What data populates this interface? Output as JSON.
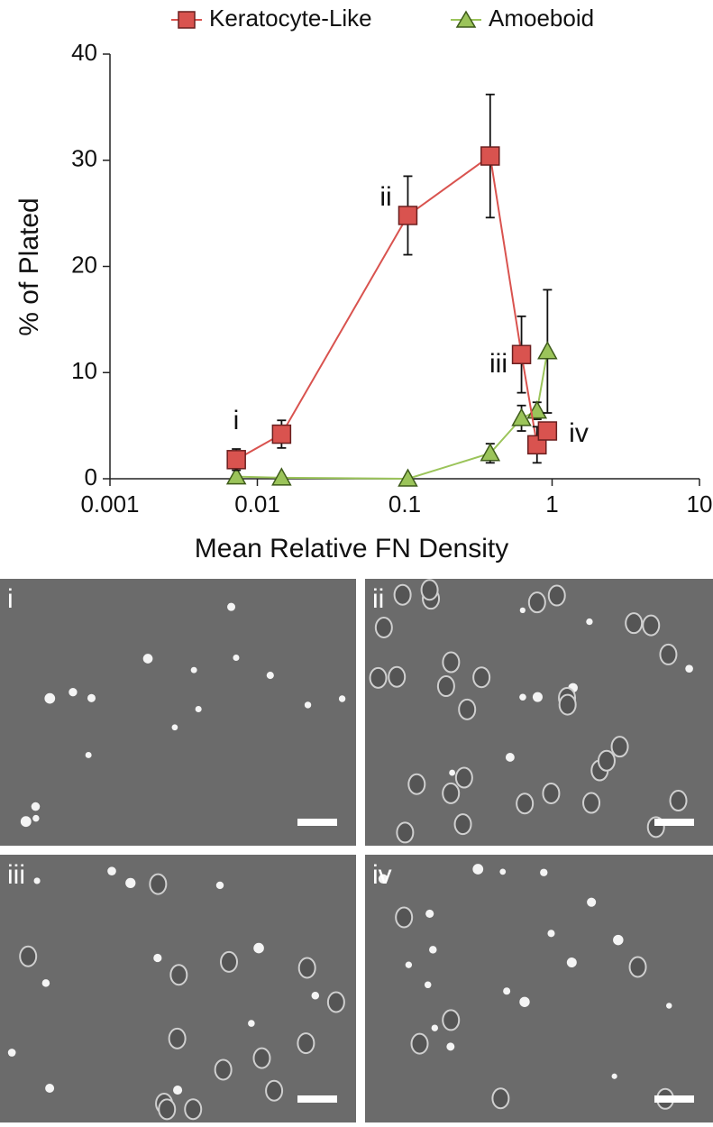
{
  "chart_data": {
    "type": "line",
    "x_label": "Mean Relative FN Density",
    "y_label": "% of Plated",
    "log_x": true,
    "grid": false,
    "legend": "top",
    "xlim": [
      0.001,
      10
    ],
    "xticks": [
      0.001,
      0.01,
      0.1,
      1,
      10
    ],
    "ylim": [
      0,
      40
    ],
    "yticks": [
      0,
      10,
      20,
      30,
      40
    ],
    "series": [
      {
        "name": "Keratocyte-Like",
        "color": "#d9534f",
        "marker": "square",
        "x": [
          0.0072,
          0.0146,
          0.105,
          0.38,
          0.62,
          0.79,
          0.93
        ],
        "values": [
          1.8,
          4.2,
          24.8,
          30.4,
          11.7,
          3.2,
          4.5
        ],
        "errors": [
          1.0,
          1.3,
          3.7,
          5.8,
          3.6,
          1.7,
          0.8
        ]
      },
      {
        "name": "Amoeboid",
        "color": "#9bc45a",
        "marker": "triangle",
        "x": [
          0.0072,
          0.0146,
          0.105,
          0.38,
          0.62,
          0.79,
          0.93
        ],
        "values": [
          0.2,
          0.1,
          0.0,
          2.4,
          5.7,
          6.4,
          12.0
        ],
        "errors": [
          0.0,
          0.0,
          0.0,
          0.9,
          1.2,
          0.8,
          5.8
        ]
      }
    ],
    "annotations": [
      "i",
      "ii",
      "iii",
      "iv"
    ]
  },
  "panels": [
    "i",
    "ii",
    "iii",
    "iv"
  ]
}
